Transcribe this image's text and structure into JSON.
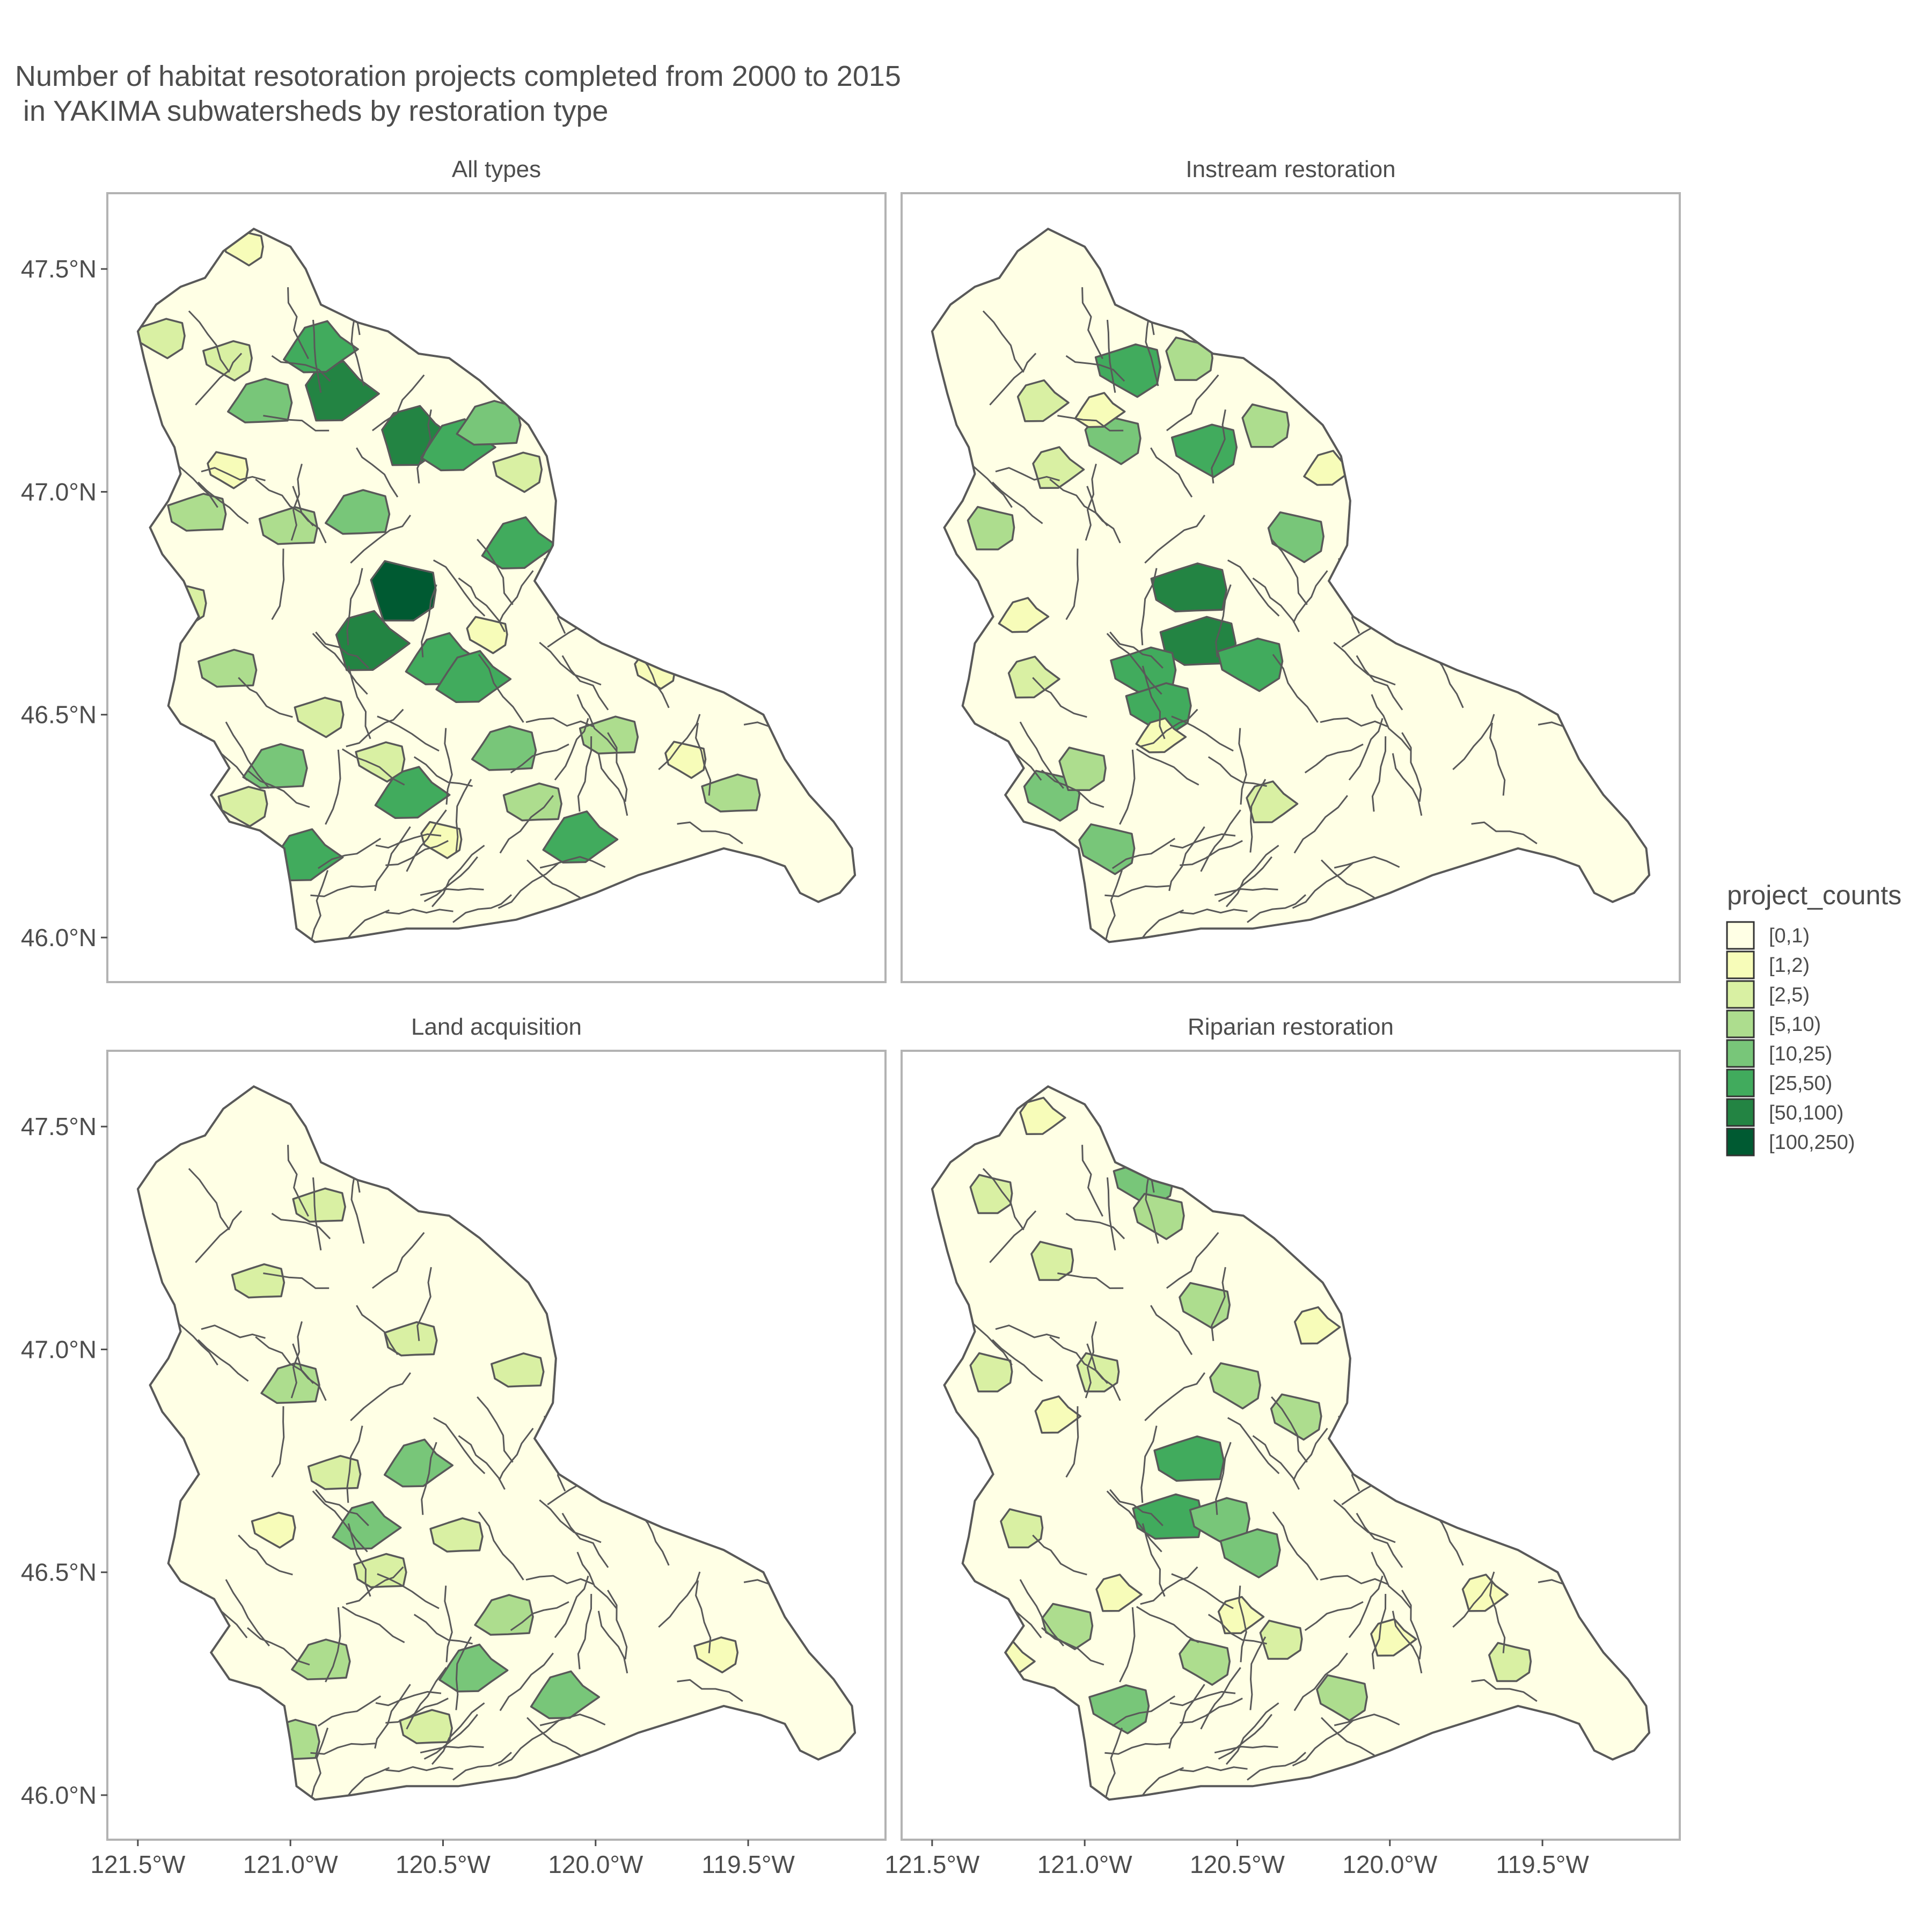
{
  "title_lines": [
    "Number of habitat resotoration projects completed from 2000 to 2015",
    " in YAKIMA subwatersheds by restoration type"
  ],
  "panels": [
    {
      "title": "All types",
      "highlights": [
        {
          "lon": -120.62,
          "lat": 46.78,
          "bin": 7
        },
        {
          "lon": -120.85,
          "lat": 47.22,
          "bin": 6
        },
        {
          "lon": -120.6,
          "lat": 47.12,
          "bin": 6
        },
        {
          "lon": -120.75,
          "lat": 46.66,
          "bin": 6
        },
        {
          "lon": -120.5,
          "lat": 46.62,
          "bin": 5
        },
        {
          "lon": -120.4,
          "lat": 46.58,
          "bin": 5
        },
        {
          "lon": -120.95,
          "lat": 46.18,
          "bin": 5
        },
        {
          "lon": -120.05,
          "lat": 46.22,
          "bin": 5
        },
        {
          "lon": -120.6,
          "lat": 46.32,
          "bin": 5
        },
        {
          "lon": -120.9,
          "lat": 47.32,
          "bin": 5
        },
        {
          "lon": -120.45,
          "lat": 47.1,
          "bin": 5
        },
        {
          "lon": -120.25,
          "lat": 46.88,
          "bin": 5
        },
        {
          "lon": -121.05,
          "lat": 46.38,
          "bin": 4
        },
        {
          "lon": -120.78,
          "lat": 46.95,
          "bin": 4
        },
        {
          "lon": -120.35,
          "lat": 47.15,
          "bin": 4
        },
        {
          "lon": -120.3,
          "lat": 46.42,
          "bin": 4
        },
        {
          "lon": -121.1,
          "lat": 47.2,
          "bin": 4
        },
        {
          "lon": -121.3,
          "lat": 46.95,
          "bin": 3
        },
        {
          "lon": -121.0,
          "lat": 46.92,
          "bin": 3
        },
        {
          "lon": -121.2,
          "lat": 46.6,
          "bin": 3
        },
        {
          "lon": -120.2,
          "lat": 46.3,
          "bin": 3
        },
        {
          "lon": -119.95,
          "lat": 46.45,
          "bin": 3
        },
        {
          "lon": -119.55,
          "lat": 46.32,
          "bin": 3
        },
        {
          "lon": -121.42,
          "lat": 47.35,
          "bin": 2
        },
        {
          "lon": -121.2,
          "lat": 47.3,
          "bin": 2
        },
        {
          "lon": -120.9,
          "lat": 46.5,
          "bin": 2
        },
        {
          "lon": -121.15,
          "lat": 46.3,
          "bin": 2
        },
        {
          "lon": -120.25,
          "lat": 47.05,
          "bin": 2
        },
        {
          "lon": -120.7,
          "lat": 46.4,
          "bin": 2
        },
        {
          "lon": -121.35,
          "lat": 46.75,
          "bin": 2
        },
        {
          "lon": -121.15,
          "lat": 47.55,
          "bin": 1
        },
        {
          "lon": -121.2,
          "lat": 47.05,
          "bin": 1
        },
        {
          "lon": -120.35,
          "lat": 46.68,
          "bin": 1
        },
        {
          "lon": -120.5,
          "lat": 46.22,
          "bin": 1
        },
        {
          "lon": -119.8,
          "lat": 46.6,
          "bin": 1
        },
        {
          "lon": -119.7,
          "lat": 46.4,
          "bin": 1
        }
      ]
    },
    {
      "title": "Instream restoration",
      "highlights": [
        {
          "lon": -120.65,
          "lat": 46.78,
          "bin": 6
        },
        {
          "lon": -120.62,
          "lat": 46.66,
          "bin": 6
        },
        {
          "lon": -120.6,
          "lat": 47.1,
          "bin": 5
        },
        {
          "lon": -120.85,
          "lat": 47.28,
          "bin": 5
        },
        {
          "lon": -120.8,
          "lat": 46.6,
          "bin": 5
        },
        {
          "lon": -120.45,
          "lat": 46.62,
          "bin": 5
        },
        {
          "lon": -120.75,
          "lat": 46.52,
          "bin": 5
        },
        {
          "lon": -120.92,
          "lat": 46.2,
          "bin": 4
        },
        {
          "lon": -121.1,
          "lat": 46.32,
          "bin": 4
        },
        {
          "lon": -120.9,
          "lat": 47.12,
          "bin": 4
        },
        {
          "lon": -120.3,
          "lat": 46.9,
          "bin": 4
        },
        {
          "lon": -120.65,
          "lat": 47.3,
          "bin": 3
        },
        {
          "lon": -120.4,
          "lat": 47.15,
          "bin": 3
        },
        {
          "lon": -121.3,
          "lat": 46.92,
          "bin": 3
        },
        {
          "lon": -121.0,
          "lat": 46.38,
          "bin": 3
        },
        {
          "lon": -121.1,
          "lat": 47.05,
          "bin": 2
        },
        {
          "lon": -121.18,
          "lat": 46.58,
          "bin": 2
        },
        {
          "lon": -120.4,
          "lat": 46.3,
          "bin": 2
        },
        {
          "lon": -121.15,
          "lat": 47.2,
          "bin": 2
        },
        {
          "lon": -120.75,
          "lat": 46.45,
          "bin": 1
        },
        {
          "lon": -121.2,
          "lat": 46.72,
          "bin": 1
        },
        {
          "lon": -120.2,
          "lat": 47.05,
          "bin": 1
        },
        {
          "lon": -120.95,
          "lat": 47.18,
          "bin": 1
        }
      ]
    },
    {
      "title": "Land acquisition",
      "highlights": [
        {
          "lon": -120.58,
          "lat": 46.74,
          "bin": 4
        },
        {
          "lon": -120.4,
          "lat": 46.28,
          "bin": 4
        },
        {
          "lon": -120.75,
          "lat": 46.6,
          "bin": 4
        },
        {
          "lon": -120.1,
          "lat": 46.22,
          "bin": 4
        },
        {
          "lon": -120.9,
          "lat": 46.3,
          "bin": 3
        },
        {
          "lon": -120.3,
          "lat": 46.4,
          "bin": 3
        },
        {
          "lon": -121.0,
          "lat": 46.12,
          "bin": 3
        },
        {
          "lon": -121.0,
          "lat": 46.92,
          "bin": 3
        },
        {
          "lon": -120.85,
          "lat": 46.72,
          "bin": 2
        },
        {
          "lon": -120.6,
          "lat": 47.02,
          "bin": 2
        },
        {
          "lon": -120.25,
          "lat": 46.95,
          "bin": 2
        },
        {
          "lon": -120.9,
          "lat": 47.32,
          "bin": 2
        },
        {
          "lon": -121.1,
          "lat": 47.15,
          "bin": 2
        },
        {
          "lon": -120.7,
          "lat": 46.5,
          "bin": 2
        },
        {
          "lon": -120.45,
          "lat": 46.58,
          "bin": 2
        },
        {
          "lon": -120.55,
          "lat": 46.15,
          "bin": 2
        },
        {
          "lon": -119.6,
          "lat": 46.32,
          "bin": 1
        },
        {
          "lon": -121.05,
          "lat": 46.6,
          "bin": 1
        }
      ]
    },
    {
      "title": "Riparian restoration",
      "highlights": [
        {
          "lon": -120.65,
          "lat": 46.75,
          "bin": 5
        },
        {
          "lon": -120.72,
          "lat": 46.62,
          "bin": 5
        },
        {
          "lon": -120.8,
          "lat": 47.38,
          "bin": 4
        },
        {
          "lon": -120.55,
          "lat": 46.62,
          "bin": 4
        },
        {
          "lon": -120.45,
          "lat": 46.55,
          "bin": 4
        },
        {
          "lon": -120.88,
          "lat": 46.2,
          "bin": 4
        },
        {
          "lon": -120.6,
          "lat": 47.1,
          "bin": 3
        },
        {
          "lon": -120.75,
          "lat": 47.3,
          "bin": 3
        },
        {
          "lon": -120.5,
          "lat": 46.92,
          "bin": 3
        },
        {
          "lon": -120.3,
          "lat": 46.85,
          "bin": 3
        },
        {
          "lon": -121.05,
          "lat": 46.38,
          "bin": 3
        },
        {
          "lon": -120.6,
          "lat": 46.3,
          "bin": 3
        },
        {
          "lon": -120.15,
          "lat": 46.22,
          "bin": 3
        },
        {
          "lon": -121.3,
          "lat": 47.35,
          "bin": 2
        },
        {
          "lon": -121.1,
          "lat": 47.2,
          "bin": 2
        },
        {
          "lon": -121.3,
          "lat": 46.95,
          "bin": 2
        },
        {
          "lon": -120.95,
          "lat": 46.95,
          "bin": 2
        },
        {
          "lon": -121.2,
          "lat": 46.6,
          "bin": 2
        },
        {
          "lon": -120.35,
          "lat": 46.35,
          "bin": 2
        },
        {
          "lon": -119.6,
          "lat": 46.3,
          "bin": 2
        },
        {
          "lon": -120.25,
          "lat": 47.05,
          "bin": 1
        },
        {
          "lon": -121.15,
          "lat": 47.52,
          "bin": 1
        },
        {
          "lon": -121.1,
          "lat": 46.85,
          "bin": 1
        },
        {
          "lon": -120.9,
          "lat": 46.45,
          "bin": 1
        },
        {
          "lon": -121.25,
          "lat": 46.3,
          "bin": 1
        },
        {
          "lon": -120.5,
          "lat": 46.4,
          "bin": 1
        },
        {
          "lon": -119.7,
          "lat": 46.45,
          "bin": 1
        },
        {
          "lon": -120.0,
          "lat": 46.35,
          "bin": 1
        }
      ]
    }
  ],
  "axes": {
    "x_ticks": [
      -121.5,
      -121.0,
      -120.5,
      -120.0,
      -119.5
    ],
    "x_tick_labels": [
      "121.5°W",
      "121.0°W",
      "120.5°W",
      "120.0°W",
      "119.5°W"
    ],
    "y_ticks": [
      46.0,
      46.5,
      47.0,
      47.5
    ],
    "y_tick_labels": [
      "46.0°N",
      "46.5°N",
      "47.0°N",
      "47.5°N"
    ],
    "x_range": [
      -121.6,
      -119.05
    ],
    "y_range": [
      45.9,
      47.67
    ]
  },
  "legend": {
    "title": "project_counts",
    "items": [
      {
        "label": "[0,1)",
        "color": "#ffffe5"
      },
      {
        "label": "[1,2)",
        "color": "#f7fcb9"
      },
      {
        "label": "[2,5)",
        "color": "#d9f0a3"
      },
      {
        "label": "[5,10)",
        "color": "#addd8e"
      },
      {
        "label": "[10,25)",
        "color": "#78c679"
      },
      {
        "label": "[25,50)",
        "color": "#41ab5d"
      },
      {
        "label": "[50,100)",
        "color": "#238443"
      },
      {
        "label": "[100,250)",
        "color": "#005a32"
      }
    ]
  },
  "watershed_outline": [
    [
      -121.12,
      47.59
    ],
    [
      -121.0,
      47.55
    ],
    [
      -120.95,
      47.5
    ],
    [
      -120.9,
      47.42
    ],
    [
      -120.78,
      47.38
    ],
    [
      -120.68,
      47.36
    ],
    [
      -120.58,
      47.31
    ],
    [
      -120.48,
      47.3
    ],
    [
      -120.38,
      47.25
    ],
    [
      -120.3,
      47.2
    ],
    [
      -120.22,
      47.15
    ],
    [
      -120.16,
      47.08
    ],
    [
      -120.13,
      46.98
    ],
    [
      -120.14,
      46.88
    ],
    [
      -120.2,
      46.8
    ],
    [
      -120.12,
      46.72
    ],
    [
      -119.98,
      46.66
    ],
    [
      -119.78,
      46.6
    ],
    [
      -119.58,
      46.55
    ],
    [
      -119.45,
      46.5
    ],
    [
      -119.38,
      46.4
    ],
    [
      -119.3,
      46.32
    ],
    [
      -119.22,
      46.26
    ],
    [
      -119.16,
      46.2
    ],
    [
      -119.15,
      46.14
    ],
    [
      -119.2,
      46.1
    ],
    [
      -119.27,
      46.08
    ],
    [
      -119.33,
      46.1
    ],
    [
      -119.38,
      46.16
    ],
    [
      -119.46,
      46.18
    ],
    [
      -119.58,
      46.2
    ],
    [
      -119.72,
      46.17
    ],
    [
      -119.86,
      46.14
    ],
    [
      -120.0,
      46.1
    ],
    [
      -120.12,
      46.07
    ],
    [
      -120.26,
      46.04
    ],
    [
      -120.45,
      46.02
    ],
    [
      -120.62,
      46.02
    ],
    [
      -120.8,
      46.0
    ],
    [
      -120.92,
      45.99
    ],
    [
      -120.98,
      46.02
    ],
    [
      -121.0,
      46.12
    ],
    [
      -121.02,
      46.2
    ],
    [
      -121.1,
      46.24
    ],
    [
      -121.2,
      46.26
    ],
    [
      -121.26,
      46.32
    ],
    [
      -121.2,
      46.38
    ],
    [
      -121.25,
      46.44
    ],
    [
      -121.36,
      46.48
    ],
    [
      -121.4,
      46.52
    ],
    [
      -121.38,
      46.58
    ],
    [
      -121.36,
      46.66
    ],
    [
      -121.3,
      46.72
    ],
    [
      -121.35,
      46.8
    ],
    [
      -121.42,
      46.86
    ],
    [
      -121.46,
      46.92
    ],
    [
      -121.4,
      46.98
    ],
    [
      -121.36,
      47.04
    ],
    [
      -121.38,
      47.1
    ],
    [
      -121.42,
      47.15
    ],
    [
      -121.45,
      47.22
    ],
    [
      -121.48,
      47.3
    ],
    [
      -121.5,
      47.36
    ],
    [
      -121.44,
      47.42
    ],
    [
      -121.36,
      47.46
    ],
    [
      -121.28,
      47.48
    ],
    [
      -121.22,
      47.54
    ]
  ]
}
